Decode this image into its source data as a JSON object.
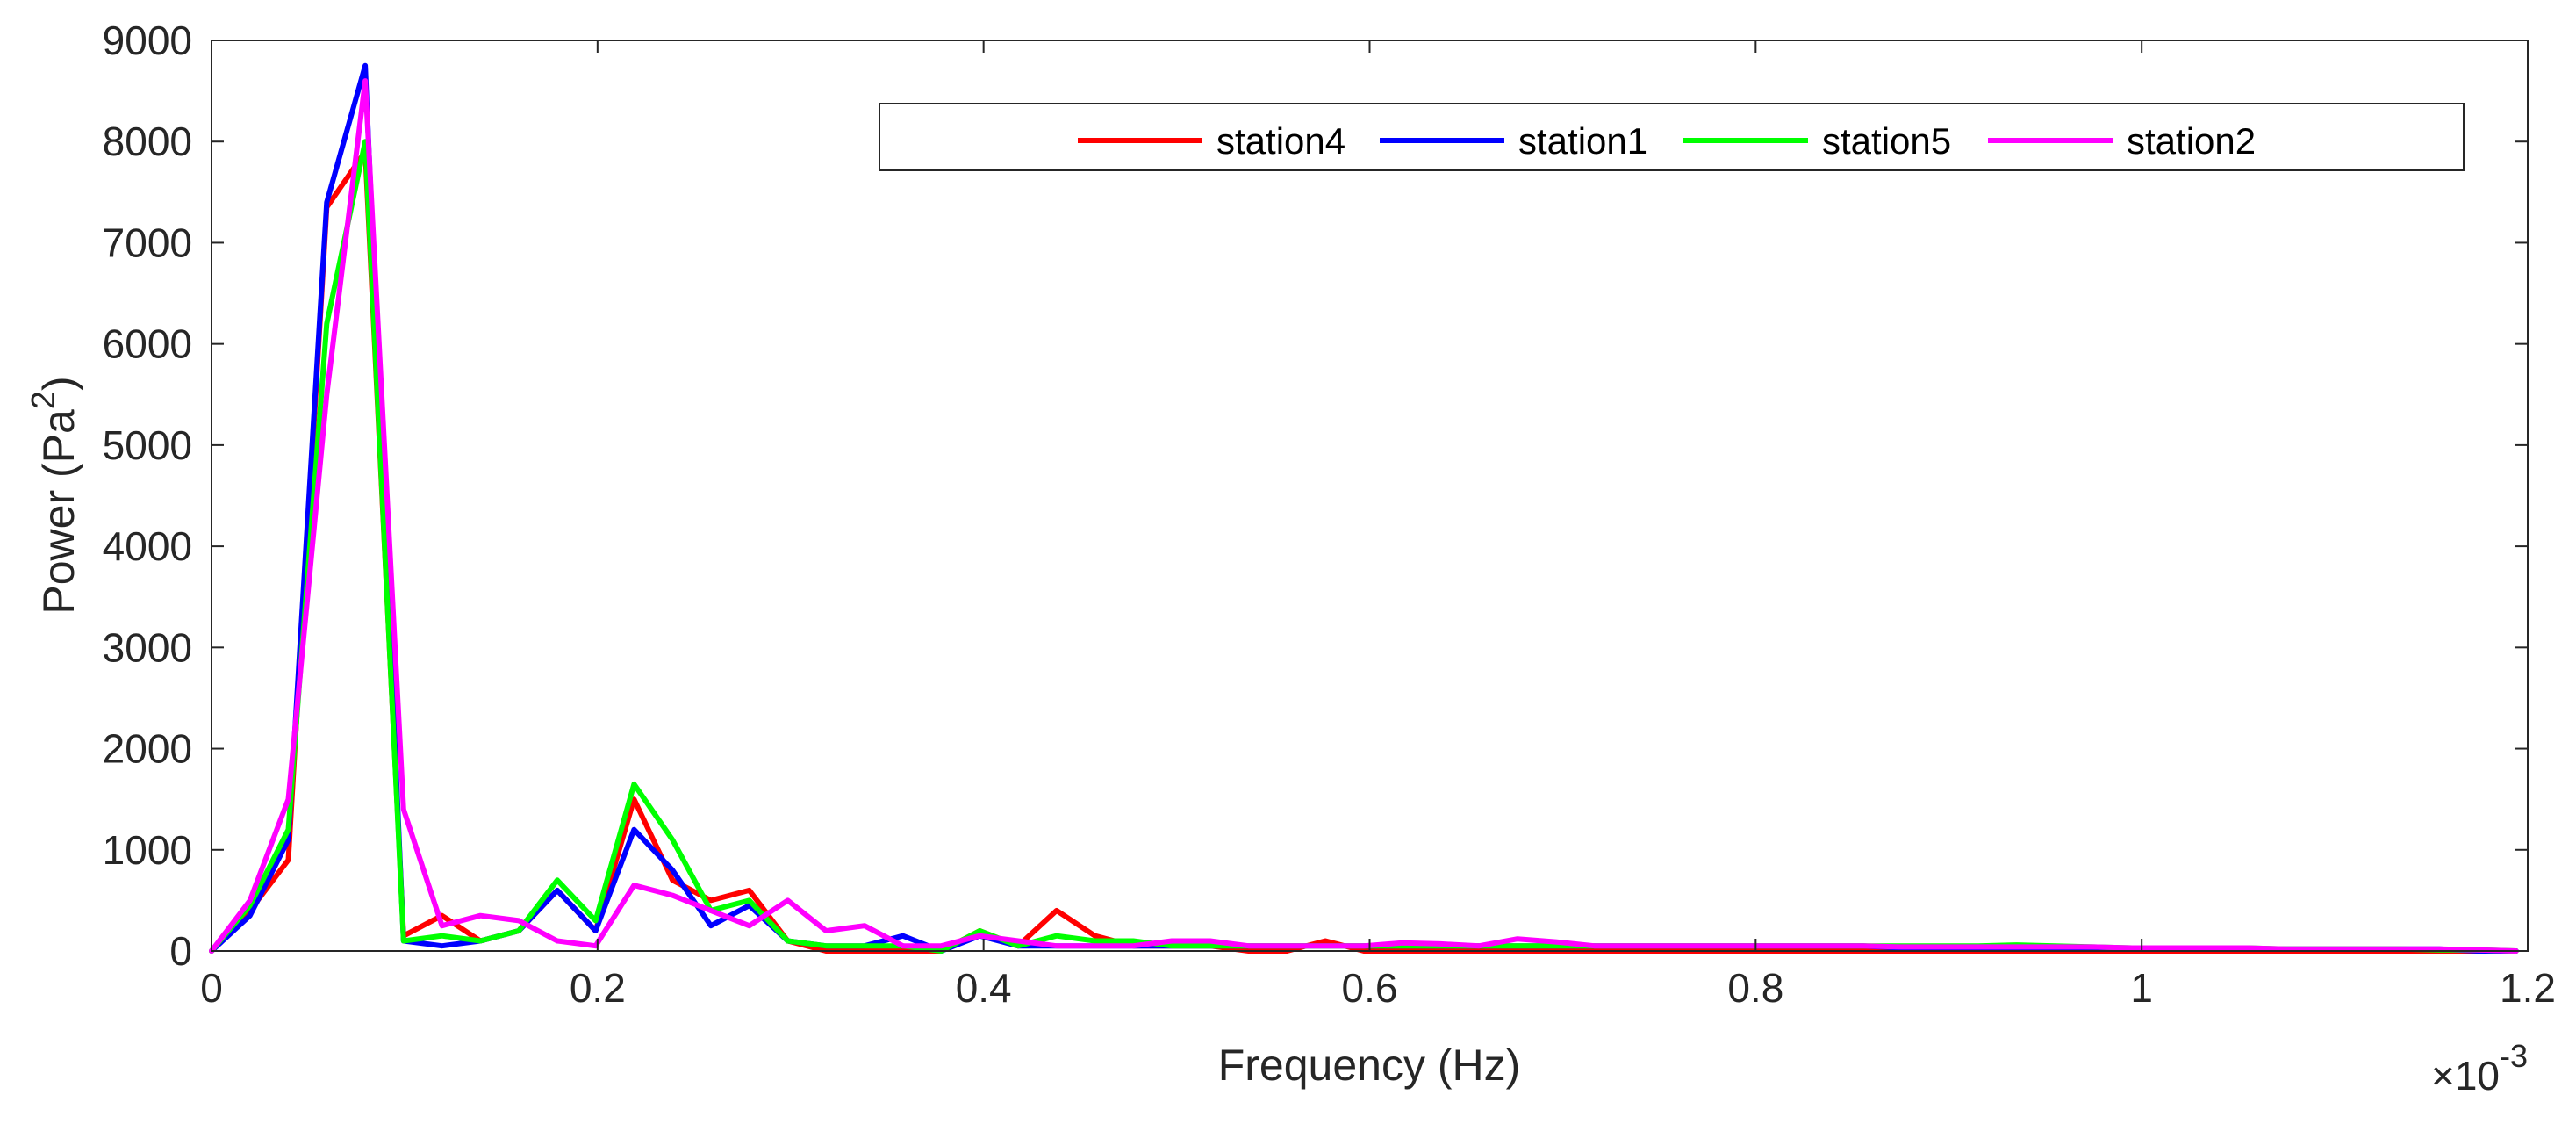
{
  "chart_data": {
    "type": "line",
    "title": "",
    "xlabel": "Frequency (Hz)",
    "ylabel_prefix": "Power (Pa",
    "ylabel_superscript": "2",
    "ylabel_suffix": ")",
    "x_exponent_base": "×10",
    "x_exponent_power": "-3",
    "xlim": [
      0,
      1.2
    ],
    "ylim": [
      0,
      9000
    ],
    "x_ticks": [
      0,
      0.2,
      0.4,
      0.6,
      0.8,
      1,
      1.2
    ],
    "x_tick_labels": [
      "0",
      "0.2",
      "0.4",
      "0.6",
      "0.8",
      "1",
      "1.2"
    ],
    "y_ticks": [
      0,
      1000,
      2000,
      3000,
      4000,
      5000,
      6000,
      7000,
      8000,
      9000
    ],
    "y_tick_labels": [
      "0",
      "1000",
      "2000",
      "3000",
      "4000",
      "5000",
      "6000",
      "7000",
      "8000",
      "9000"
    ],
    "grid": false,
    "legend_position": "top-right",
    "x_step": 0.0199,
    "series": [
      {
        "name": "station4",
        "color": "#ff0000",
        "values": [
          0,
          400,
          900,
          7350,
          7900,
          150,
          350,
          100,
          200,
          600,
          200,
          1500,
          700,
          500,
          600,
          100,
          0,
          0,
          0,
          0,
          200,
          50,
          400,
          150,
          50,
          50,
          50,
          0,
          0,
          100,
          0,
          0,
          0,
          0,
          0,
          0,
          0,
          0,
          0,
          0,
          0,
          0,
          0,
          0,
          0,
          0,
          0,
          0,
          0,
          0,
          0,
          0,
          0,
          0,
          0,
          0,
          0,
          0,
          0,
          0,
          0
        ]
      },
      {
        "name": "station1",
        "color": "#0000ff",
        "values": [
          0,
          350,
          1100,
          7400,
          8750,
          100,
          50,
          100,
          200,
          600,
          200,
          1200,
          800,
          250,
          450,
          100,
          50,
          50,
          150,
          0,
          150,
          50,
          50,
          50,
          50,
          50,
          50,
          50,
          50,
          50,
          50,
          50,
          50,
          50,
          50,
          50,
          50,
          50,
          50,
          50,
          50,
          50,
          50,
          50,
          30,
          30,
          30,
          30,
          30,
          20,
          20,
          20,
          20,
          20,
          20,
          20,
          20,
          20,
          20,
          0,
          0
        ]
      },
      {
        "name": "station5",
        "color": "#00ff00",
        "values": [
          0,
          450,
          1200,
          6200,
          8000,
          100,
          150,
          100,
          200,
          700,
          300,
          1650,
          1100,
          400,
          500,
          100,
          50,
          50,
          50,
          0,
          200,
          50,
          150,
          100,
          100,
          50,
          50,
          50,
          50,
          50,
          50,
          50,
          50,
          50,
          50,
          50,
          50,
          50,
          50,
          50,
          50,
          50,
          50,
          50,
          50,
          50,
          50,
          60,
          50,
          40,
          30,
          30,
          30,
          30,
          20,
          20,
          20,
          20,
          10,
          10,
          0
        ]
      },
      {
        "name": "station2",
        "color": "#ff00ff",
        "values": [
          0,
          500,
          1500,
          5500,
          8600,
          1400,
          250,
          350,
          300,
          100,
          50,
          650,
          550,
          400,
          250,
          500,
          200,
          250,
          50,
          50,
          150,
          100,
          50,
          50,
          50,
          100,
          100,
          50,
          50,
          50,
          50,
          80,
          70,
          50,
          120,
          90,
          50,
          50,
          50,
          50,
          50,
          50,
          50,
          50,
          40,
          40,
          40,
          40,
          40,
          40,
          30,
          30,
          30,
          30,
          20,
          20,
          20,
          20,
          20,
          10,
          0
        ]
      }
    ]
  }
}
